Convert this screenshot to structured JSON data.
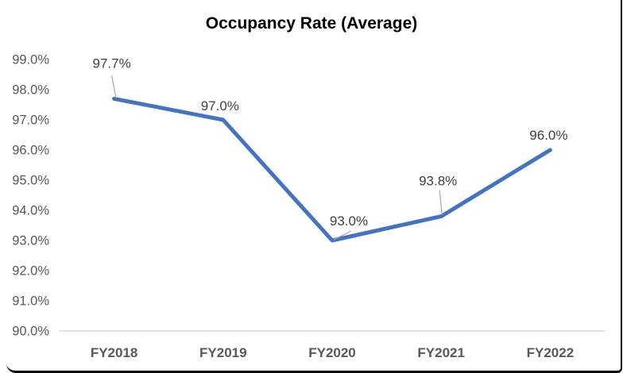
{
  "chart_data": {
    "type": "line",
    "title": "Occupancy Rate (Average)",
    "categories": [
      "FY2018",
      "FY2019",
      "FY2020",
      "FY2021",
      "FY2022"
    ],
    "series": [
      {
        "name": "Occupancy Rate (Average)",
        "values": [
          97.7,
          97.0,
          93.0,
          93.8,
          96.0
        ],
        "data_labels": [
          "97.7%",
          "97.0%",
          "93.0%",
          "93.8%",
          "96.0%"
        ]
      }
    ],
    "xlabel": "",
    "ylabel": "",
    "ylim": [
      90.0,
      99.0
    ],
    "y_tick_step": 1.0,
    "y_ticks": [
      {
        "label": "99.0%",
        "value": 99.0
      },
      {
        "label": "98.0%",
        "value": 98.0
      },
      {
        "label": "97.0%",
        "value": 97.0
      },
      {
        "label": "96.0%",
        "value": 96.0
      },
      {
        "label": "95.0%",
        "value": 95.0
      },
      {
        "label": "94.0%",
        "value": 94.0
      },
      {
        "label": "93.0%",
        "value": 93.0
      },
      {
        "label": "92.0%",
        "value": 92.0
      },
      {
        "label": "91.0%",
        "value": 91.0
      },
      {
        "label": "90.0%",
        "value": 90.0
      }
    ],
    "grid": "off",
    "legend": "none",
    "colors": {
      "line": "#4472C4",
      "data_label": "#404040",
      "axis_label": "#595959",
      "axis_line": "#D9D9D9",
      "leader_line": "#A6A6A6",
      "title": "#000000",
      "frame_border": "#000000"
    }
  }
}
